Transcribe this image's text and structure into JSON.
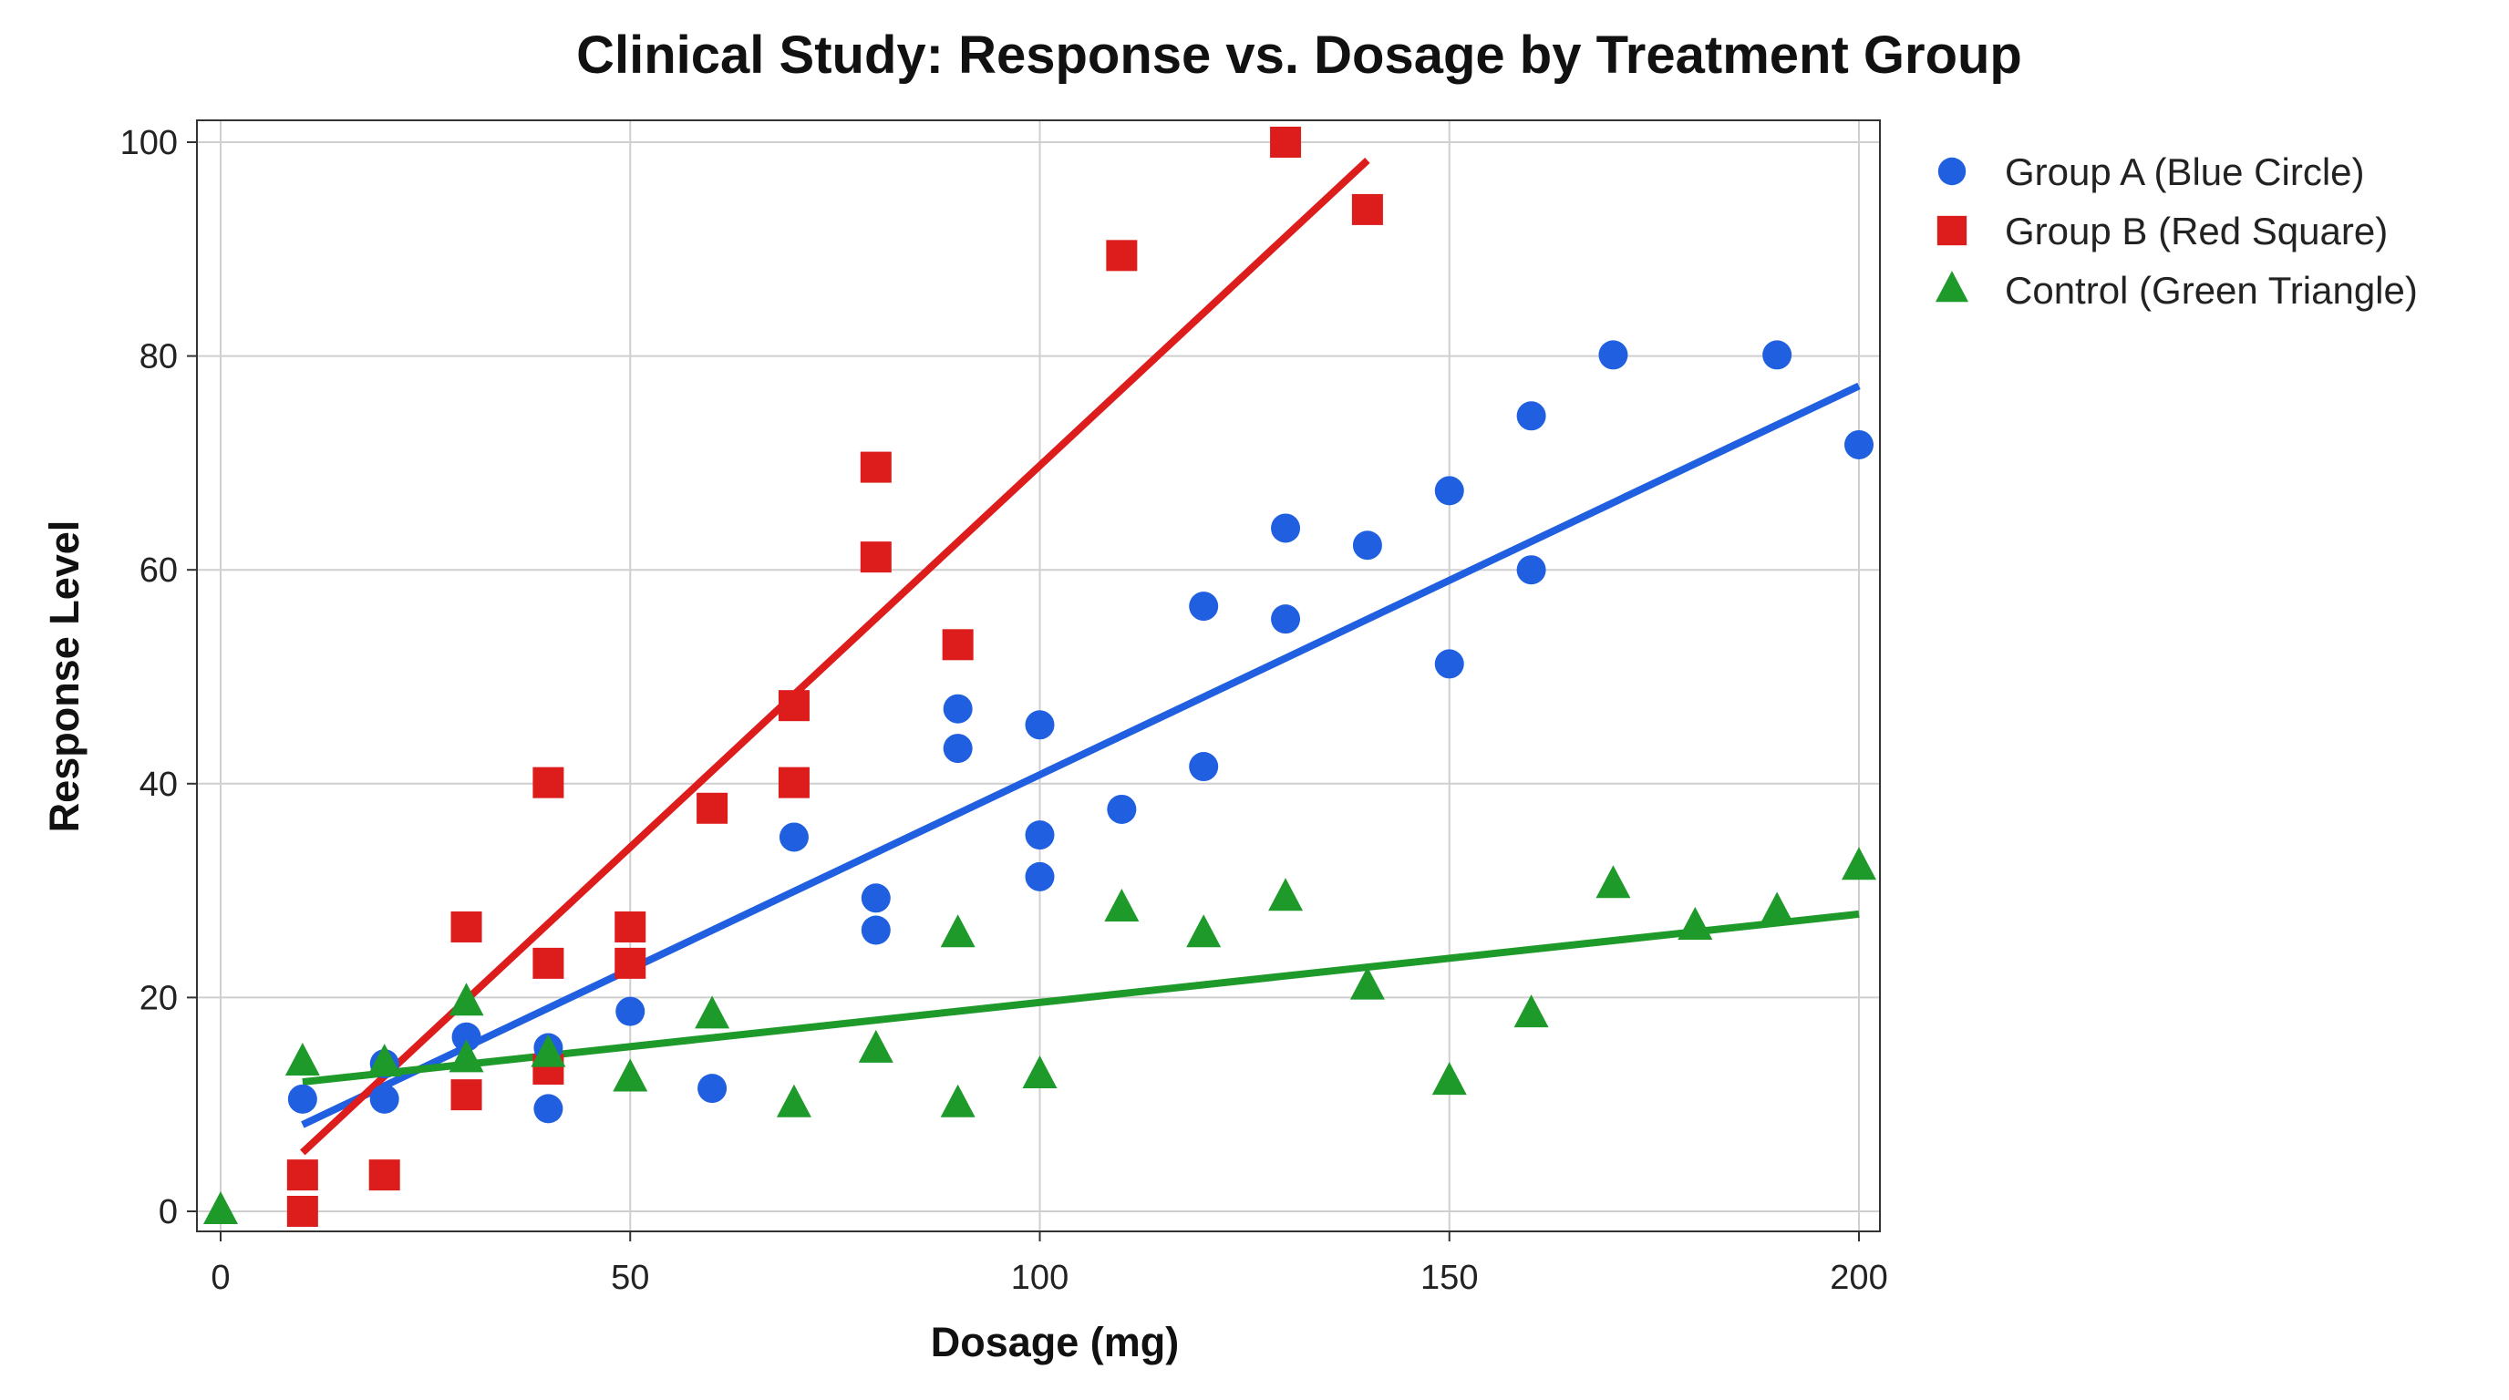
{
  "chart_data": {
    "type": "scatter",
    "title": "Clinical Study: Response vs. Dosage by Treatment Group",
    "xlabel": "Dosage (mg)",
    "ylabel": "Response Level",
    "xlim": [
      -3,
      203
    ],
    "ylim": [
      -2,
      102
    ],
    "xticks": [
      0,
      50,
      100,
      150,
      200
    ],
    "yticks": [
      0,
      20,
      40,
      60,
      80,
      100
    ],
    "grid": true,
    "legend_position": "outside-top-right",
    "series": [
      {
        "name": "Group A (Blue Circle)",
        "marker": "circle",
        "color": "#1f5fe0",
        "points": [
          [
            10,
            10.5
          ],
          [
            20,
            13.8
          ],
          [
            20,
            10.5
          ],
          [
            30,
            16.3
          ],
          [
            40,
            15.3
          ],
          [
            40,
            9.6
          ],
          [
            50,
            18.7
          ],
          [
            60,
            11.5
          ],
          [
            70,
            35.0
          ],
          [
            80,
            29.3
          ],
          [
            80,
            26.3
          ],
          [
            90,
            47.0
          ],
          [
            90,
            43.3
          ],
          [
            100,
            45.5
          ],
          [
            100,
            35.2
          ],
          [
            100,
            31.3
          ],
          [
            110,
            37.6
          ],
          [
            120,
            56.6
          ],
          [
            120,
            41.6
          ],
          [
            130,
            63.9
          ],
          [
            130,
            55.4
          ],
          [
            140,
            62.3
          ],
          [
            150,
            67.4
          ],
          [
            150,
            51.2
          ],
          [
            160,
            74.4
          ],
          [
            160,
            60.0
          ],
          [
            170,
            80.1
          ],
          [
            190,
            80.1
          ],
          [
            200,
            71.7
          ]
        ],
        "trend": [
          [
            10,
            8.1
          ],
          [
            200,
            77.2
          ]
        ]
      },
      {
        "name": "Group B (Red Square)",
        "marker": "square",
        "color": "#dd1c1c",
        "points": [
          [
            10,
            3.4
          ],
          [
            10,
            0
          ],
          [
            20,
            3.4
          ],
          [
            30,
            26.6
          ],
          [
            30,
            10.9
          ],
          [
            40,
            40.1
          ],
          [
            40,
            23.2
          ],
          [
            40,
            13.3
          ],
          [
            50,
            26.6
          ],
          [
            50,
            23.2
          ],
          [
            60,
            37.7
          ],
          [
            70,
            47.3
          ],
          [
            70,
            40.1
          ],
          [
            80,
            69.6
          ],
          [
            80,
            61.2
          ],
          [
            90,
            53.0
          ],
          [
            110,
            89.4
          ],
          [
            130,
            100
          ],
          [
            140,
            93.7
          ]
        ],
        "trend": [
          [
            10,
            5.5
          ],
          [
            140,
            98.3
          ]
        ]
      },
      {
        "name": "Control (Green Triangle)",
        "marker": "triangle",
        "color": "#1e9a2a",
        "points": [
          [
            0,
            0
          ],
          [
            10,
            13.9
          ],
          [
            20,
            13.8
          ],
          [
            30,
            19.5
          ],
          [
            30,
            14.2
          ],
          [
            40,
            14.7
          ],
          [
            50,
            12.4
          ],
          [
            60,
            18.3
          ],
          [
            70,
            10.0
          ],
          [
            80,
            15.1
          ],
          [
            90,
            25.9
          ],
          [
            90,
            10.0
          ],
          [
            100,
            12.7
          ],
          [
            110,
            28.3
          ],
          [
            120,
            25.9
          ],
          [
            130,
            29.3
          ],
          [
            140,
            21.0
          ],
          [
            150,
            12.1
          ],
          [
            160,
            18.4
          ],
          [
            170,
            30.5
          ],
          [
            180,
            26.6
          ],
          [
            190,
            28.0
          ],
          [
            200,
            32.2
          ]
        ],
        "trend": [
          [
            10,
            12.1
          ],
          [
            200,
            27.8
          ]
        ]
      }
    ]
  }
}
